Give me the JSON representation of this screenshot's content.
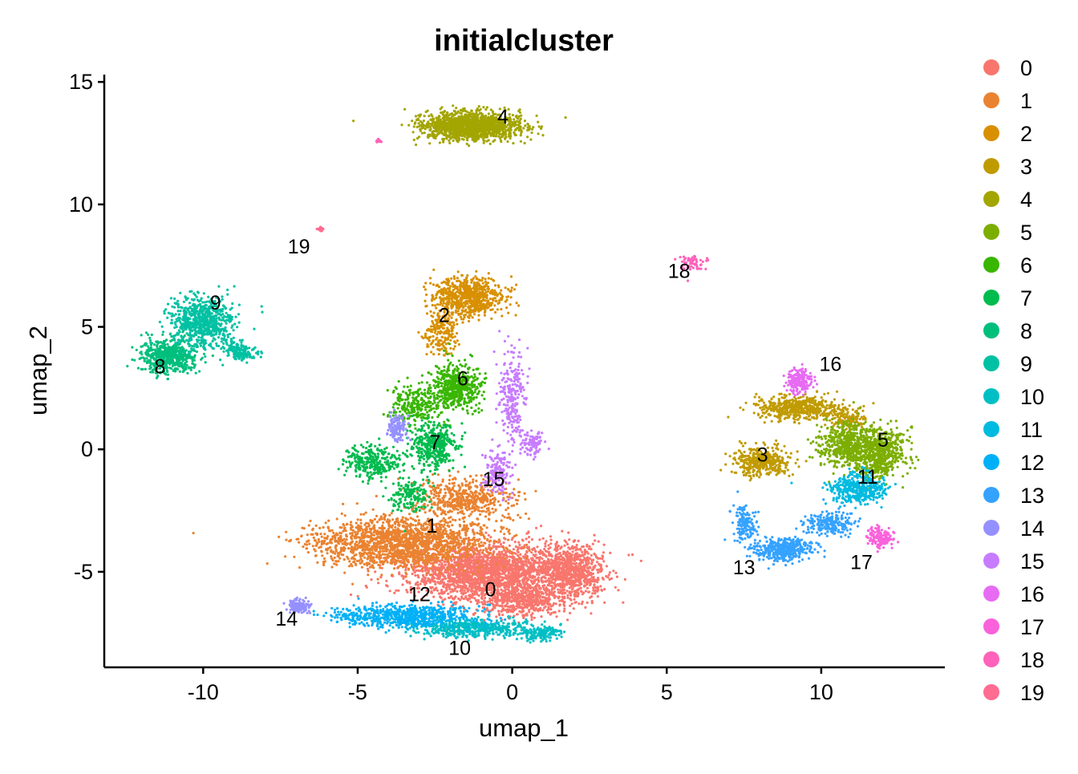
{
  "chart_data": {
    "type": "scatter",
    "title": "initialcluster",
    "xlabel": "umap_1",
    "ylabel": "umap_2",
    "xlim": [
      -13.2,
      14
    ],
    "ylim": [
      -8.9,
      15.3
    ],
    "xticks": [
      -10,
      -5,
      0,
      5,
      10
    ],
    "xtick_labels": [
      "-10",
      "-5",
      "0",
      "5",
      "10"
    ],
    "yticks": [
      -5,
      0,
      5,
      10,
      15
    ],
    "ytick_labels": [
      "-5",
      "0",
      "5",
      "10",
      "15"
    ],
    "grid": false,
    "legend_position": "right",
    "legend_entries": [
      "0",
      "1",
      "2",
      "3",
      "4",
      "5",
      "6",
      "7",
      "8",
      "9",
      "10",
      "11",
      "12",
      "13",
      "14",
      "15",
      "16",
      "17",
      "18",
      "19"
    ],
    "colors": [
      "#F8766D",
      "#EA8331",
      "#D89000",
      "#C09B00",
      "#A3A500",
      "#7CAE00",
      "#39B600",
      "#00BB4E",
      "#00BF7D",
      "#00C1A3",
      "#00BFC4",
      "#00BAE0",
      "#00B0F6",
      "#35A2FF",
      "#9590FF",
      "#C77CFF",
      "#E76BF3",
      "#FA62DB",
      "#FF62BC",
      "#FF6C91"
    ],
    "clusters": [
      {
        "name": "0",
        "label": [
          -0.7,
          -5.7
        ],
        "blobs": [
          [
            -0.8,
            -5.0,
            2.6,
            1.1,
            2200
          ],
          [
            2.0,
            -5.0,
            1.0,
            1.1,
            700
          ],
          [
            0.3,
            -6.2,
            1.4,
            0.6,
            500
          ]
        ]
      },
      {
        "name": "1",
        "label": [
          -2.6,
          -3.1
        ],
        "blobs": [
          [
            -3.6,
            -3.8,
            2.8,
            1.0,
            1800
          ],
          [
            -1.5,
            -2.0,
            1.5,
            0.8,
            500
          ]
        ]
      },
      {
        "name": "2",
        "label": [
          -2.2,
          5.5
        ],
        "blobs": [
          [
            -1.4,
            6.2,
            1.1,
            0.8,
            700
          ],
          [
            -2.3,
            4.8,
            0.5,
            0.9,
            200
          ]
        ]
      },
      {
        "name": "3",
        "label": [
          8.1,
          -0.2
        ],
        "blobs": [
          [
            8.1,
            -0.5,
            0.9,
            0.6,
            400
          ],
          [
            9.2,
            1.7,
            1.3,
            0.45,
            500
          ],
          [
            10.9,
            1.2,
            0.6,
            0.5,
            150
          ]
        ]
      },
      {
        "name": "4",
        "label": [
          -0.3,
          13.6
        ],
        "blobs": [
          [
            -1.3,
            13.2,
            1.6,
            0.55,
            1400
          ]
        ]
      },
      {
        "name": "5",
        "label": [
          12.0,
          0.4
        ],
        "blobs": [
          [
            11.8,
            -0.1,
            0.9,
            1.0,
            700
          ],
          [
            10.7,
            0.2,
            0.8,
            0.9,
            400
          ]
        ]
      },
      {
        "name": "6",
        "label": [
          -1.6,
          2.9
        ],
        "blobs": [
          [
            -1.8,
            2.6,
            0.8,
            0.9,
            500
          ],
          [
            -3.1,
            1.8,
            0.8,
            0.8,
            250
          ]
        ]
      },
      {
        "name": "7",
        "label": [
          -2.5,
          0.3
        ],
        "blobs": [
          [
            -2.5,
            0.1,
            0.7,
            0.9,
            400
          ],
          [
            -4.5,
            -0.5,
            0.9,
            0.7,
            300
          ],
          [
            -3.3,
            -1.9,
            0.6,
            0.6,
            150
          ]
        ]
      },
      {
        "name": "8",
        "label": [
          -11.4,
          3.4
        ],
        "blobs": [
          [
            -11.1,
            3.8,
            0.9,
            0.7,
            600
          ]
        ]
      },
      {
        "name": "9",
        "label": [
          -9.6,
          6.0
        ],
        "blobs": [
          [
            -10.0,
            5.2,
            1.0,
            1.0,
            700
          ],
          [
            -8.8,
            4.0,
            0.5,
            0.4,
            150
          ]
        ]
      },
      {
        "name": "10",
        "label": [
          -1.7,
          -8.1
        ],
        "blobs": [
          [
            -1.3,
            -7.3,
            1.8,
            0.35,
            500
          ],
          [
            0.9,
            -7.5,
            0.7,
            0.3,
            150
          ]
        ]
      },
      {
        "name": "11",
        "label": [
          11.5,
          -1.1
        ],
        "blobs": [
          [
            11.2,
            -1.6,
            0.9,
            0.6,
            400
          ]
        ]
      },
      {
        "name": "12",
        "label": [
          -3.0,
          -5.9
        ],
        "blobs": [
          [
            -3.5,
            -6.8,
            2.2,
            0.45,
            700
          ]
        ]
      },
      {
        "name": "13",
        "label": [
          7.5,
          -4.8
        ],
        "blobs": [
          [
            8.8,
            -4.1,
            0.9,
            0.45,
            400
          ],
          [
            7.5,
            -3.0,
            0.4,
            0.8,
            150
          ],
          [
            10.3,
            -3.0,
            0.8,
            0.5,
            200
          ]
        ]
      },
      {
        "name": "14",
        "label": [
          -7.3,
          -6.9
        ],
        "blobs": [
          [
            -6.9,
            -6.4,
            0.35,
            0.25,
            150
          ],
          [
            -3.7,
            0.9,
            0.3,
            0.5,
            120
          ]
        ]
      },
      {
        "name": "15",
        "label": [
          -0.6,
          -1.2
        ],
        "blobs": [
          [
            -0.5,
            -1.0,
            0.4,
            1.0,
            150
          ],
          [
            0.0,
            2.0,
            0.4,
            2.0,
            250
          ],
          [
            0.7,
            0.2,
            0.4,
            0.5,
            100
          ]
        ]
      },
      {
        "name": "16",
        "label": [
          10.3,
          3.5
        ],
        "blobs": [
          [
            9.3,
            2.8,
            0.4,
            0.5,
            200
          ]
        ]
      },
      {
        "name": "17",
        "label": [
          11.3,
          -4.6
        ],
        "blobs": [
          [
            11.9,
            -3.6,
            0.4,
            0.45,
            150
          ]
        ]
      },
      {
        "name": "18",
        "label": [
          5.4,
          7.3
        ],
        "blobs": [
          [
            5.8,
            7.6,
            0.4,
            0.3,
            60
          ],
          [
            -4.3,
            12.6,
            0.08,
            0.06,
            20
          ]
        ]
      },
      {
        "name": "19",
        "label": [
          -6.9,
          8.3
        ],
        "blobs": [
          [
            -6.2,
            9.0,
            0.08,
            0.08,
            30
          ]
        ]
      }
    ]
  }
}
